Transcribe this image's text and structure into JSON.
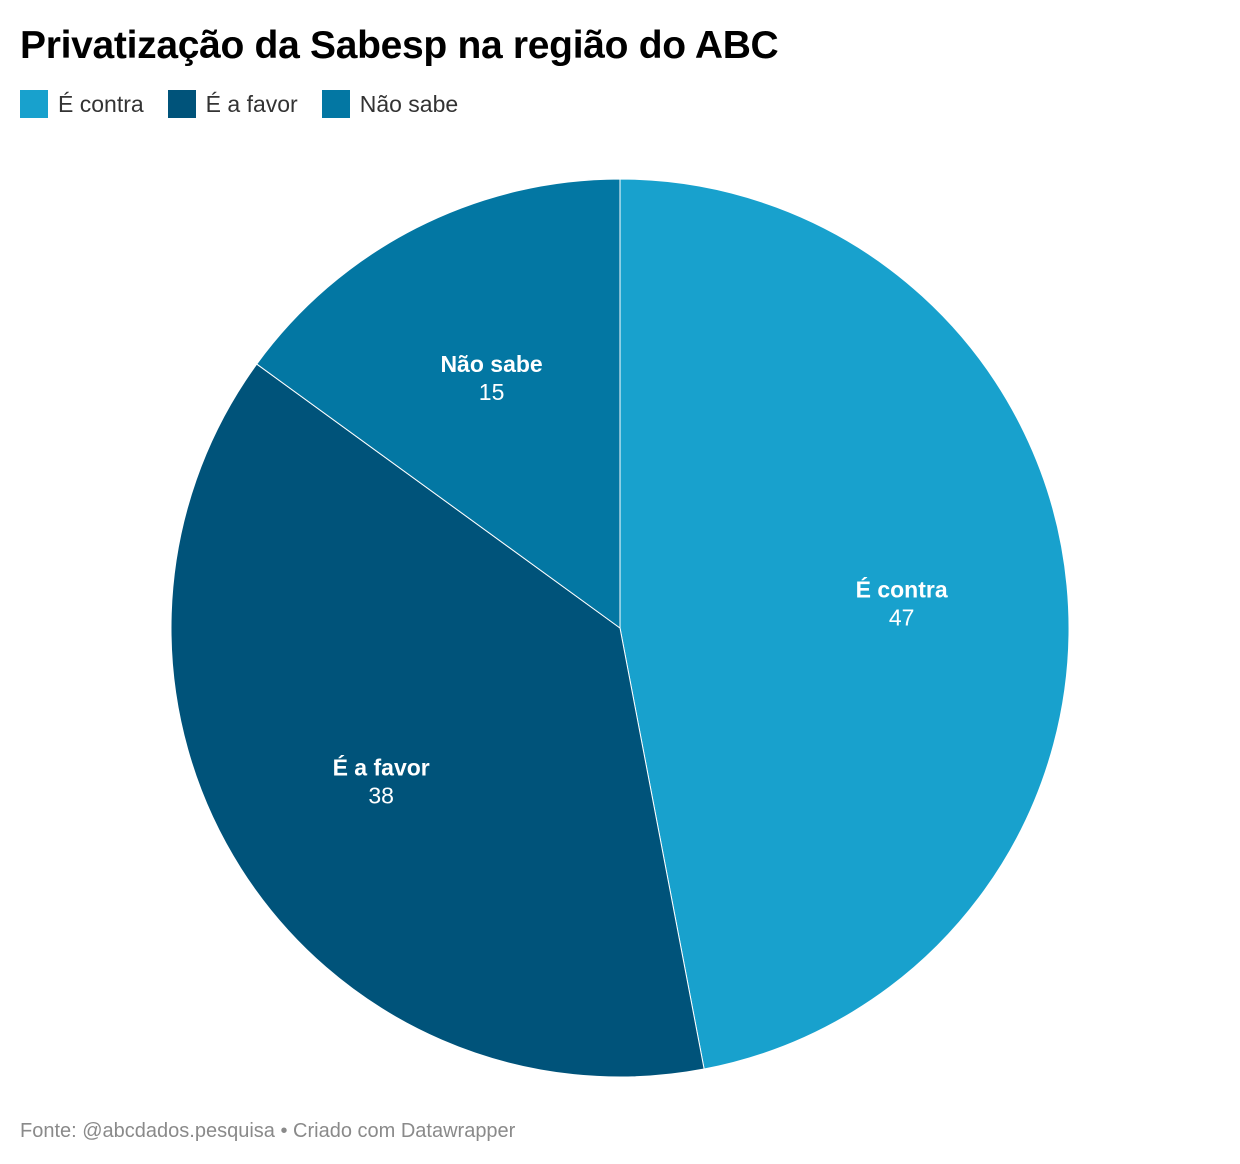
{
  "chart_data": {
    "type": "pie",
    "title": "Privatização da Sabesp na região do ABC",
    "categories": [
      "É contra",
      "É a favor",
      "Não sabe"
    ],
    "values": [
      47,
      38,
      15
    ],
    "colors": [
      "#18a1cd",
      "#00537a",
      "#0377a3"
    ],
    "legend_position": "top-left",
    "data_labels": true
  },
  "legend": {
    "items": [
      {
        "label": "É contra",
        "color": "#18a1cd"
      },
      {
        "label": "É a favor",
        "color": "#00537a"
      },
      {
        "label": "Não sabe",
        "color": "#0377a3"
      }
    ]
  },
  "footer": {
    "text": "Fonte: @abcdados.pesquisa • Criado com Datawrapper"
  }
}
